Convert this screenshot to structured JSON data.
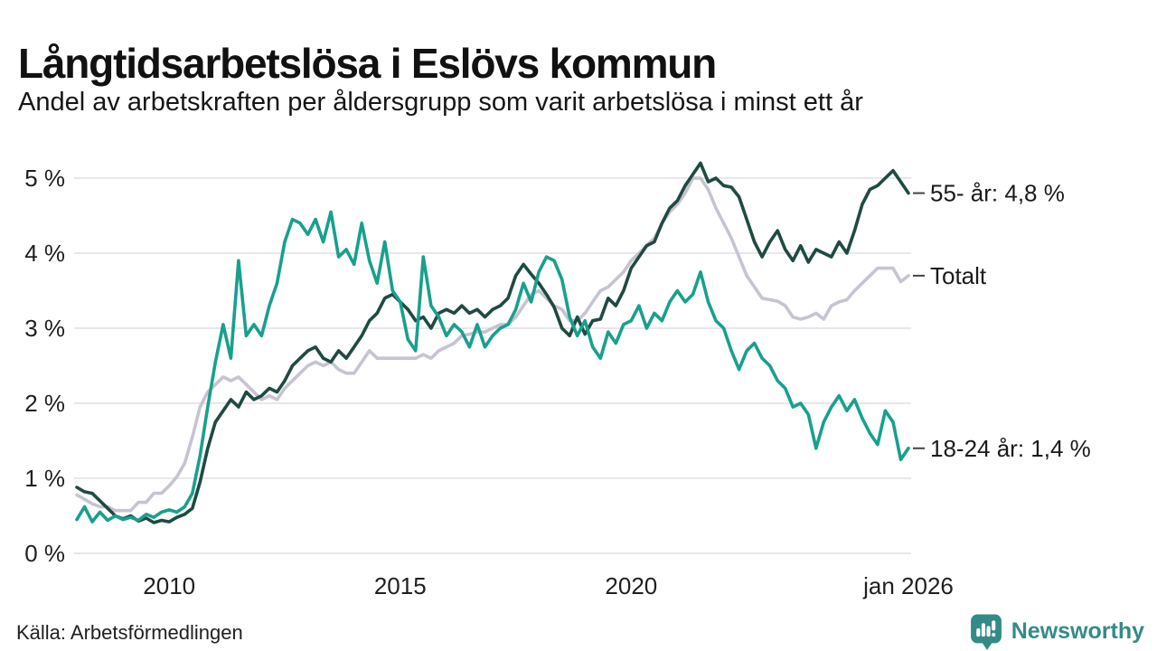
{
  "header": {
    "title": "Långtidsarbetslösa i Eslövs kommun",
    "subtitle": "Andel av arbetskraften per åldersgrupp som varit arbetslösa i minst ett år"
  },
  "footer": {
    "source": "Källa: Arbetsförmedlingen",
    "brand": "Newsworthy",
    "brand_icon": "bar-chart-speech-bubble"
  },
  "colors": {
    "brand": "#338B87",
    "grid": "#E7E7EC",
    "axis_text": "#1F1F1F",
    "label_text": "#1A1A1A",
    "label_dash": "#444444",
    "series_55": "#1F4A42",
    "series_total": "#C7C3D1",
    "series_18_24": "#18A08D"
  },
  "chart_data": {
    "type": "line",
    "title": "Långtidsarbetslösa i Eslövs kommun",
    "subtitle": "Andel av arbetskraften per åldersgrupp som varit arbetslösa i minst ett år",
    "source": "Källa: Arbetsförmedlingen",
    "unit": "% av arbetskraften",
    "grid": "horizontal",
    "legend_position": "right-inline-labels",
    "x_axis": {
      "start_year": 2008.0,
      "end_year": 2026.0,
      "step_years": 0.166667,
      "ticks": [
        {
          "year": 2010,
          "label": "2010"
        },
        {
          "year": 2015,
          "label": "2015"
        },
        {
          "year": 2020,
          "label": "2020"
        },
        {
          "year": 2026,
          "label": "jan 2026"
        }
      ]
    },
    "y_axis": {
      "min": 0,
      "max": 5,
      "ylim": [
        0,
        5.3
      ],
      "ticks": [
        {
          "value": 0,
          "label": "0 %"
        },
        {
          "value": 1,
          "label": "1 %"
        },
        {
          "value": 2,
          "label": "2 %"
        },
        {
          "value": 3,
          "label": "3 %"
        },
        {
          "value": 4,
          "label": "4 %"
        },
        {
          "value": 5,
          "label": "5 %"
        }
      ]
    },
    "series": [
      {
        "name": "Totalt",
        "end_label": "Totalt",
        "last_value": 3.7,
        "color": "#C7C3D1",
        "values": [
          0.78,
          0.72,
          0.66,
          0.62,
          0.62,
          0.57,
          0.57,
          0.57,
          0.68,
          0.68,
          0.8,
          0.8,
          0.9,
          1.02,
          1.2,
          1.55,
          1.95,
          2.15,
          2.25,
          2.35,
          2.3,
          2.35,
          2.25,
          2.15,
          2.05,
          2.1,
          2.05,
          2.2,
          2.3,
          2.4,
          2.5,
          2.55,
          2.5,
          2.55,
          2.45,
          2.4,
          2.4,
          2.55,
          2.7,
          2.6,
          2.6,
          2.6,
          2.6,
          2.6,
          2.6,
          2.65,
          2.6,
          2.7,
          2.75,
          2.8,
          2.9,
          2.92,
          2.95,
          2.95,
          3.0,
          3.05,
          3.05,
          3.15,
          3.3,
          3.45,
          3.5,
          3.4,
          3.3,
          3.25,
          3.1,
          3.1,
          3.2,
          3.35,
          3.5,
          3.55,
          3.65,
          3.75,
          3.9,
          4.0,
          4.1,
          4.2,
          4.4,
          4.55,
          4.65,
          4.8,
          5.0,
          5.0,
          4.85,
          4.6,
          4.4,
          4.2,
          3.95,
          3.7,
          3.55,
          3.4,
          3.38,
          3.36,
          3.3,
          3.15,
          3.12,
          3.15,
          3.2,
          3.12,
          3.3,
          3.35,
          3.38,
          3.5,
          3.6,
          3.7,
          3.8,
          3.8,
          3.8,
          3.62,
          3.7
        ]
      },
      {
        "name": "55- år",
        "end_label": "55- år: 4,8 %",
        "last_value": 4.8,
        "color": "#1F4A42",
        "values": [
          0.88,
          0.82,
          0.8,
          0.7,
          0.6,
          0.5,
          0.46,
          0.5,
          0.43,
          0.47,
          0.41,
          0.44,
          0.42,
          0.48,
          0.52,
          0.6,
          0.95,
          1.4,
          1.75,
          1.9,
          2.05,
          1.95,
          2.15,
          2.05,
          2.1,
          2.2,
          2.15,
          2.3,
          2.5,
          2.6,
          2.7,
          2.75,
          2.6,
          2.55,
          2.7,
          2.6,
          2.75,
          2.9,
          3.1,
          3.2,
          3.4,
          3.45,
          3.35,
          3.25,
          3.1,
          3.15,
          3.0,
          3.2,
          3.25,
          3.2,
          3.3,
          3.2,
          3.25,
          3.15,
          3.25,
          3.3,
          3.4,
          3.7,
          3.85,
          3.72,
          3.6,
          3.45,
          3.28,
          3.0,
          2.9,
          3.15,
          2.92,
          3.1,
          3.12,
          3.4,
          3.3,
          3.5,
          3.8,
          3.95,
          4.1,
          4.15,
          4.4,
          4.6,
          4.7,
          4.9,
          5.05,
          5.2,
          4.95,
          5.0,
          4.9,
          4.88,
          4.75,
          4.45,
          4.15,
          3.95,
          4.15,
          4.3,
          4.05,
          3.9,
          4.1,
          3.88,
          4.05,
          4.0,
          3.95,
          4.15,
          4.0,
          4.3,
          4.65,
          4.85,
          4.9,
          5.0,
          5.1,
          4.95,
          4.8
        ]
      },
      {
        "name": "18-24 år",
        "end_label": "18-24 år: 1,4 %",
        "last_value": 1.4,
        "color": "#18A08D",
        "values": [
          0.45,
          0.62,
          0.42,
          0.55,
          0.44,
          0.5,
          0.45,
          0.48,
          0.44,
          0.52,
          0.48,
          0.55,
          0.58,
          0.55,
          0.62,
          0.8,
          1.3,
          1.95,
          2.55,
          3.05,
          2.6,
          3.9,
          2.9,
          3.05,
          2.9,
          3.3,
          3.6,
          4.15,
          4.45,
          4.4,
          4.25,
          4.45,
          4.15,
          4.55,
          3.95,
          4.05,
          3.85,
          4.4,
          3.9,
          3.6,
          4.15,
          3.5,
          3.35,
          2.85,
          2.7,
          3.95,
          3.3,
          3.15,
          2.9,
          3.05,
          2.95,
          2.75,
          3.05,
          2.75,
          2.9,
          3.0,
          3.05,
          3.25,
          3.6,
          3.35,
          3.75,
          3.95,
          3.9,
          3.65,
          3.15,
          2.9,
          3.1,
          2.75,
          2.6,
          2.95,
          2.8,
          3.05,
          3.1,
          3.3,
          3.0,
          3.2,
          3.1,
          3.35,
          3.5,
          3.35,
          3.45,
          3.75,
          3.35,
          3.1,
          3.0,
          2.7,
          2.45,
          2.7,
          2.8,
          2.6,
          2.5,
          2.3,
          2.2,
          1.95,
          2.0,
          1.85,
          1.4,
          1.75,
          1.95,
          2.1,
          1.9,
          2.05,
          1.8,
          1.6,
          1.45,
          1.9,
          1.75,
          1.25,
          1.4
        ]
      }
    ]
  }
}
